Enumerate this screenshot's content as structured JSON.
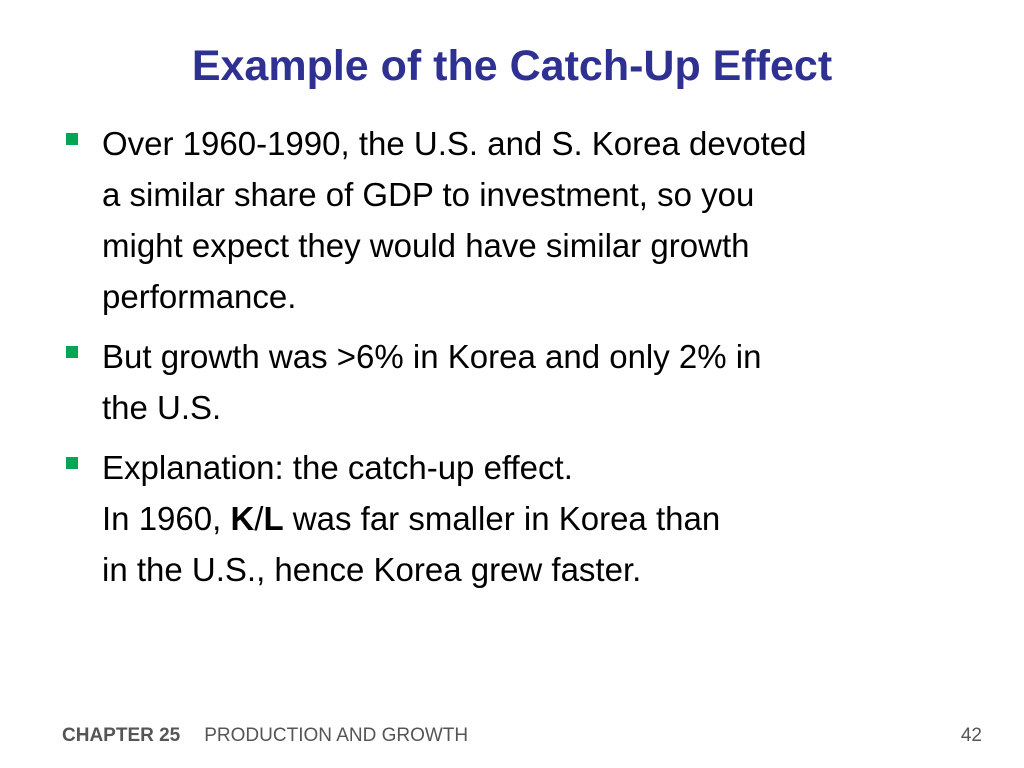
{
  "slide": {
    "title": "Example of the Catch-Up Effect",
    "bullets": [
      {
        "lines": [
          "Over 1960-1990, the U.S. and S. Korea devoted",
          "a similar share of GDP to investment, so you",
          "might expect they would have similar growth",
          "performance."
        ]
      },
      {
        "lines": [
          "But growth was >6% in Korea and only 2% in",
          "the U.S."
        ]
      },
      {
        "line1": "Explanation:  the catch-up effect.",
        "line2_prefix": "In 1960, ",
        "line2_bold_k": "K",
        "line2_slash": "/",
        "line2_bold_l": "L",
        "line2_suffix": " was far smaller in Korea than",
        "line3": "in the U.S., hence Korea grew faster."
      }
    ],
    "bullet_color": "#00a651",
    "title_color": "#2e3192"
  },
  "footer": {
    "chapter": "CHAPTER 25",
    "subject": "PRODUCTION AND GROWTH",
    "page_number": "42"
  }
}
